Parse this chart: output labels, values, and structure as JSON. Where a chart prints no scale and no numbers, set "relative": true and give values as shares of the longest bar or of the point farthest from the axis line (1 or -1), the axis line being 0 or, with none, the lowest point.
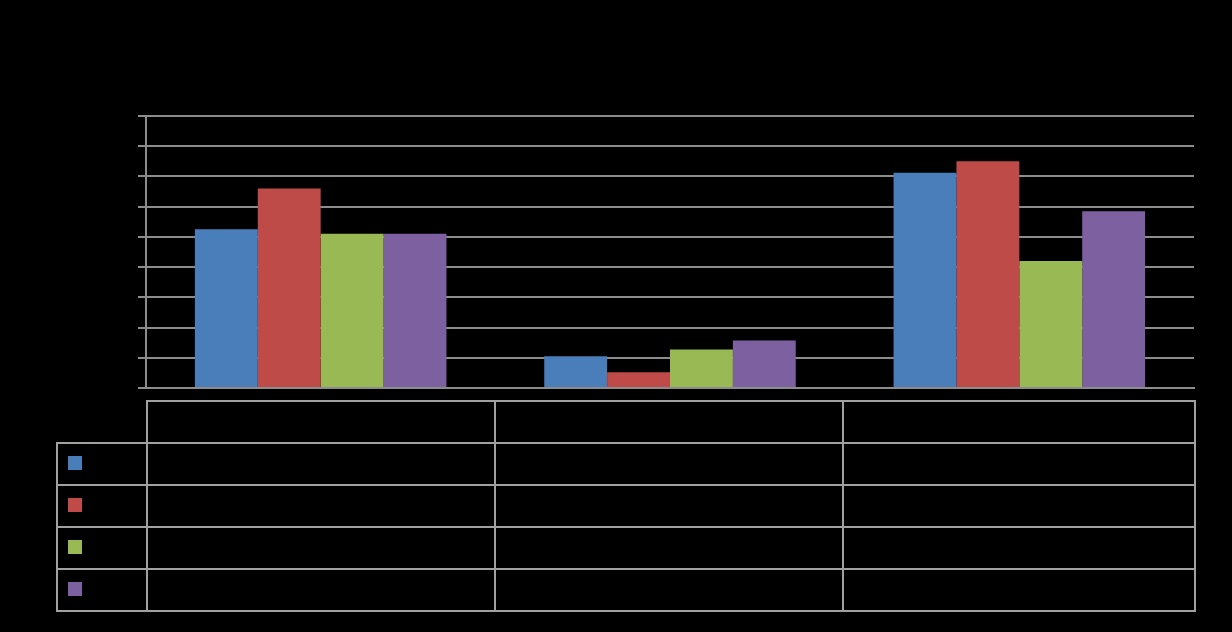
{
  "chart_data": {
    "type": "bar",
    "relative": true,
    "grid": "y",
    "categories": [
      null,
      null,
      null
    ],
    "series": [
      {
        "color": "#4a7ebb",
        "values": [
          0.7,
          0.14,
          0.95
        ]
      },
      {
        "color": "#be4b48",
        "values": [
          0.88,
          0.07,
          1
        ]
      },
      {
        "color": "#98b954",
        "values": [
          0.68,
          0.17,
          0.56
        ]
      },
      {
        "color": "#7d60a0",
        "values": [
          0.68,
          0.21,
          0.78
        ]
      }
    ]
  }
}
